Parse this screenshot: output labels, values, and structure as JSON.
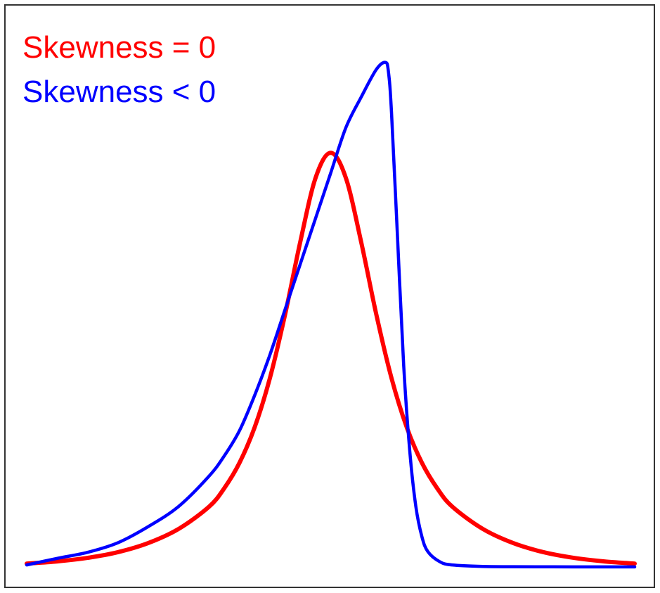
{
  "chart_data": {
    "type": "line",
    "title": "",
    "xlabel": "",
    "ylabel": "",
    "xlim": [
      -5,
      5
    ],
    "ylim": [
      0,
      1.0
    ],
    "grid": false,
    "legend_position": "top-left",
    "series": [
      {
        "name": "Skewness = 0",
        "color": "#ff0000",
        "x": [
          -5.0,
          -4.5,
          -4.0,
          -3.5,
          -3.0,
          -2.5,
          -2.0,
          -1.75,
          -1.5,
          -1.25,
          -1.0,
          -0.75,
          -0.5,
          -0.25,
          0.0,
          0.25,
          0.5,
          0.75,
          1.0,
          1.25,
          1.5,
          1.75,
          2.0,
          2.5,
          3.0,
          3.5,
          4.0,
          4.5,
          5.0
        ],
        "y": [
          0.0067,
          0.011,
          0.018,
          0.0293,
          0.0474,
          0.0755,
          0.1194,
          0.156,
          0.2063,
          0.2768,
          0.374,
          0.5,
          0.644,
          0.77,
          0.82,
          0.77,
          0.644,
          0.5,
          0.374,
          0.2768,
          0.2063,
          0.156,
          0.1194,
          0.0755,
          0.0474,
          0.0293,
          0.018,
          0.011,
          0.0067
        ]
      },
      {
        "name": "Skewness < 0",
        "color": "#0000ff",
        "x": [
          -5.0,
          -4.5,
          -4.0,
          -3.5,
          -3.0,
          -2.5,
          -2.0,
          -1.75,
          -1.5,
          -1.25,
          -1.0,
          -0.75,
          -0.5,
          -0.25,
          0.0,
          0.25,
          0.5,
          0.75,
          0.9,
          0.95,
          1.0,
          1.1,
          1.2,
          1.3,
          1.4,
          1.5,
          1.6,
          1.8,
          2.0,
          2.5,
          3.0,
          4.0,
          5.0
        ],
        "y": [
          0.004,
          0.017,
          0.029,
          0.048,
          0.08,
          0.12,
          0.18,
          0.22,
          0.27,
          0.34,
          0.42,
          0.51,
          0.6,
          0.69,
          0.78,
          0.87,
          0.93,
          0.985,
          0.999,
          0.98,
          0.9,
          0.65,
          0.4,
          0.23,
          0.12,
          0.06,
          0.03,
          0.01,
          0.004,
          0.001,
          0.0005,
          0.0002,
          0.0002
        ]
      }
    ]
  }
}
